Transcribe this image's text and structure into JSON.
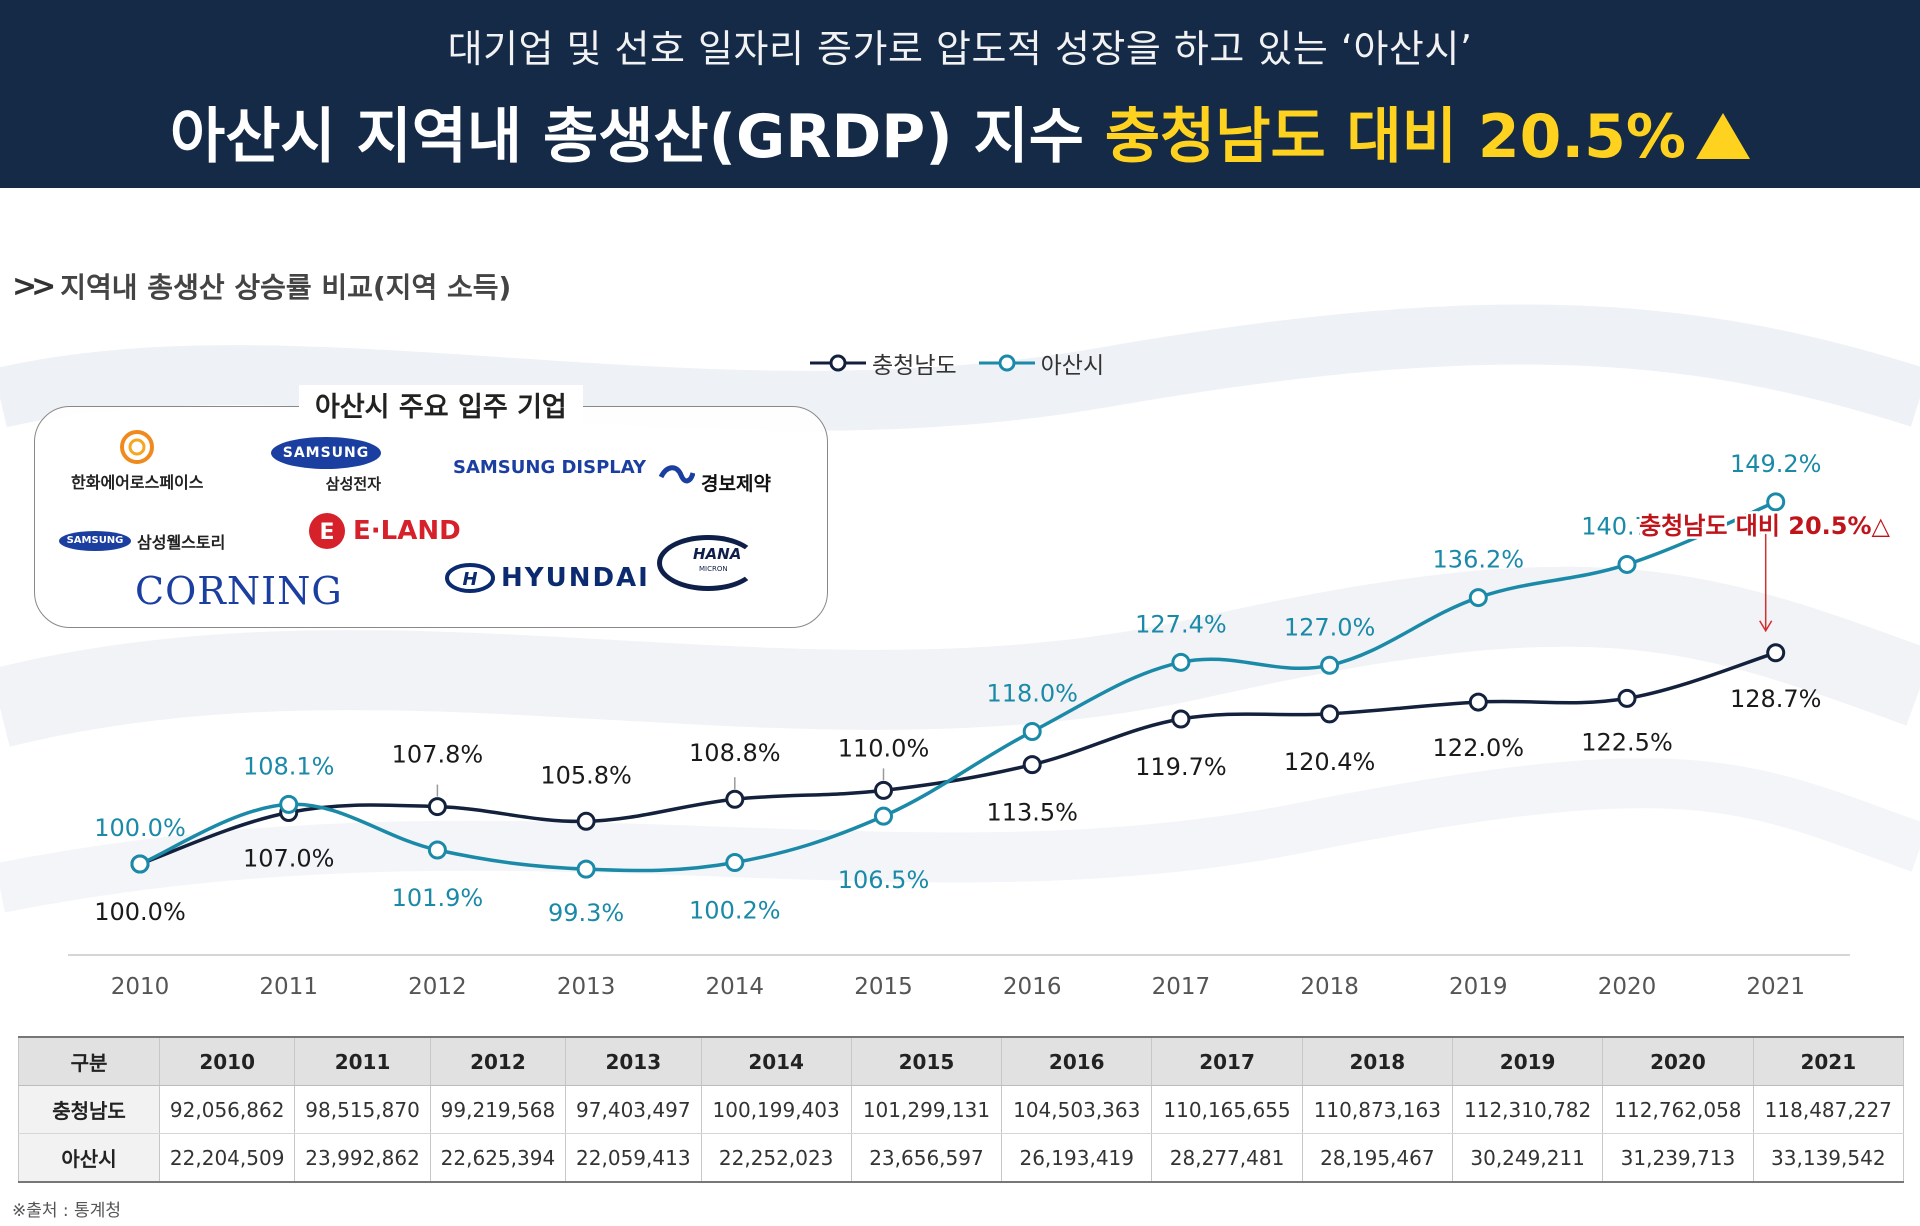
{
  "header": {
    "subtitle": "대기업 및 선호 일자리 증가로 압도적 성장을 하고 있는 ‘아산시’",
    "title_main": "아산시 지역내 총생산(GRDP) 지수 ",
    "title_highlight": "충청남도 대비 20.5%"
  },
  "section": {
    "title": "지역내 총생산 상승률 비교(지역 소득)"
  },
  "companies": {
    "title": "아산시 주요 입주 기업",
    "logos": {
      "hanwha": "한화에어로스페이스",
      "samsung_electronics_brand": "SAMSUNG",
      "samsung_electronics": "삼성전자",
      "samsung_display": "SAMSUNG DISPLAY",
      "kyungbo": "경보제약",
      "samsung_wellstory_brand": "SAMSUNG",
      "samsung_wellstory": "삼성웰스토리",
      "eland": "E·LAND",
      "hana_brand": "HANA",
      "hana_sub": "MICRON",
      "corning": "CORNING",
      "hyundai": "HYUNDAI"
    }
  },
  "chart_data": {
    "type": "line",
    "x": [
      "2010",
      "2011",
      "2012",
      "2013",
      "2014",
      "2015",
      "2016",
      "2017",
      "2018",
      "2019",
      "2020",
      "2021"
    ],
    "ylim": [
      95,
      152
    ],
    "series": [
      {
        "name": "충청남도",
        "color": "#14213d",
        "values": [
          100.0,
          107.0,
          107.8,
          105.8,
          108.8,
          110.0,
          113.5,
          119.7,
          120.4,
          122.0,
          122.5,
          128.7
        ],
        "labels": [
          "100.0%",
          "107.0%",
          "107.8%",
          "105.8%",
          "108.8%",
          "110.0%",
          "113.5%",
          "119.7%",
          "120.4%",
          "122.0%",
          "122.5%",
          "128.7%"
        ]
      },
      {
        "name": "아산시",
        "color": "#1a8aa8",
        "values": [
          100.0,
          108.1,
          101.9,
          99.3,
          100.2,
          106.5,
          118.0,
          127.4,
          127.0,
          136.2,
          140.7,
          149.2
        ],
        "labels": [
          "100.0%",
          "108.1%",
          "101.9%",
          "99.3%",
          "100.2%",
          "106.5%",
          "118.0%",
          "127.4%",
          "127.0%",
          "136.2%",
          "140.7%",
          "149.2%"
        ]
      }
    ],
    "annotation": "충청남도 대비 20.5%△"
  },
  "table": {
    "header_label": "구분",
    "years": [
      "2010",
      "2011",
      "2012",
      "2013",
      "2014",
      "2015",
      "2016",
      "2017",
      "2018",
      "2019",
      "2020",
      "2021"
    ],
    "rows": [
      {
        "label": "충청남도",
        "values": [
          "92,056,862",
          "98,515,870",
          "99,219,568",
          "97,403,497",
          "100,199,403",
          "101,299,131",
          "104,503,363",
          "110,165,655",
          "110,873,163",
          "112,310,782",
          "112,762,058",
          "118,487,227"
        ]
      },
      {
        "label": "아산시",
        "values": [
          "22,204,509",
          "23,992,862",
          "22,625,394",
          "22,059,413",
          "22,252,023",
          "23,656,597",
          "26,193,419",
          "28,277,481",
          "28,195,467",
          "30,249,211",
          "31,239,713",
          "33,139,542"
        ]
      }
    ]
  },
  "source": "※출처 : 통계청"
}
